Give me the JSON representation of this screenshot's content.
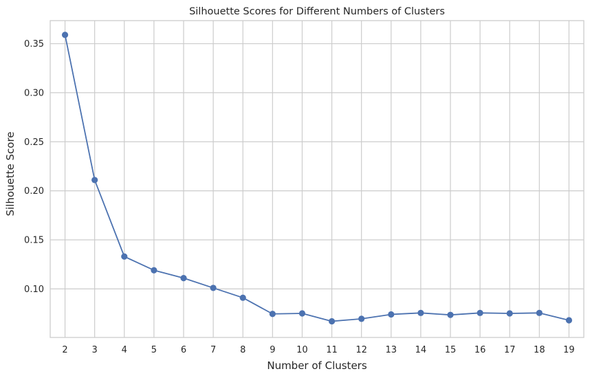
{
  "chart_data": {
    "type": "line",
    "title": "Silhouette Scores for Different Numbers of Clusters",
    "xlabel": "Number of Clusters",
    "ylabel": "Silhouette Score",
    "x": [
      2,
      3,
      4,
      5,
      6,
      7,
      8,
      9,
      10,
      11,
      12,
      13,
      14,
      15,
      16,
      17,
      18,
      19
    ],
    "series": [
      {
        "values": [
          0.359,
          0.211,
          0.133,
          0.119,
          0.111,
          0.101,
          0.091,
          0.0745,
          0.075,
          0.067,
          0.0695,
          0.074,
          0.0755,
          0.0735,
          0.0755,
          0.075,
          0.0755,
          0.068
        ],
        "color": "#4c72b0",
        "marker": "circle"
      }
    ],
    "xlim": [
      1.5,
      19.5
    ],
    "ylim": [
      0.0505,
      0.3735
    ],
    "yticks": [
      0.1,
      0.15,
      0.2,
      0.25,
      0.3,
      0.35
    ],
    "ytick_labels": [
      "0.10",
      "0.15",
      "0.20",
      "0.25",
      "0.30",
      "0.35"
    ],
    "grid": true,
    "style": {
      "grid_color": "#cccccc",
      "frame_color": "#cccccc",
      "background": "#ffffff"
    }
  }
}
